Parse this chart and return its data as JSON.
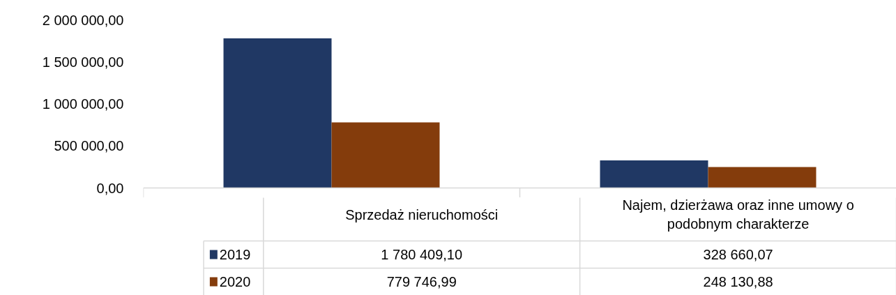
{
  "chart_data": {
    "type": "bar",
    "categories": [
      "Sprzedaż nieruchomości",
      "Najem, dzierżawa oraz inne umowy o podobnym charakterze"
    ],
    "series": [
      {
        "name": "2019",
        "color": "#203864",
        "values": [
          1780409.1,
          328660.07
        ],
        "value_labels": [
          "1 780 409,10",
          "328 660,07"
        ]
      },
      {
        "name": "2020",
        "color": "#843c0c",
        "values": [
          779746.99,
          248130.88
        ],
        "value_labels": [
          "779 746,99",
          "248 130,88"
        ]
      }
    ],
    "ylim": [
      0,
      2000000
    ],
    "yticks": [
      {
        "value": 0,
        "label": "0,00"
      },
      {
        "value": 500000,
        "label": "500 000,00"
      },
      {
        "value": 1000000,
        "label": "1 000 000,00"
      },
      {
        "value": 1500000,
        "label": "1 500 000,00"
      },
      {
        "value": 2000000,
        "label": "2 000 000,00"
      }
    ],
    "grid": false,
    "legend": "bottom"
  }
}
